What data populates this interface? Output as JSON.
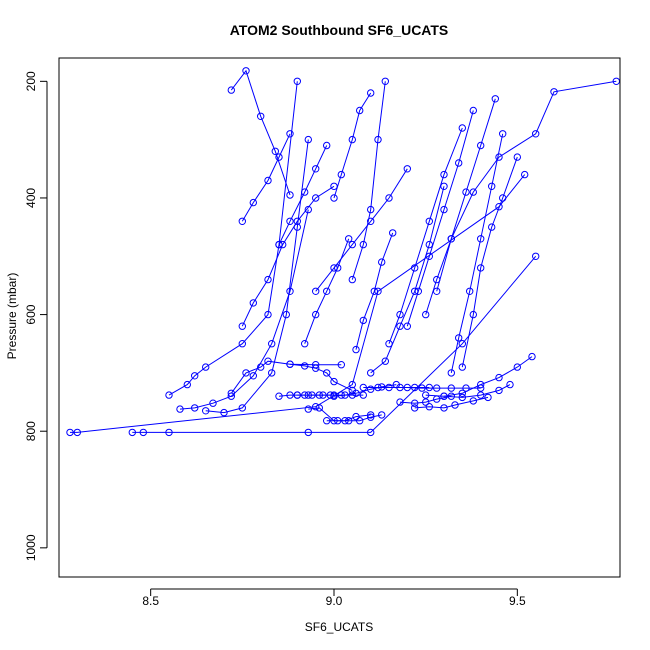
{
  "chart_data": {
    "type": "scatter",
    "title": "ATOM2 Southbound SF6_UCATS",
    "xlabel": "SF6_UCATS",
    "ylabel": "Pressure (mbar)",
    "xlim": [
      8.25,
      9.78
    ],
    "ylim": [
      1050,
      160
    ],
    "y_inverted": true,
    "x_ticks": [
      8.5,
      9.0,
      9.5
    ],
    "x_tick_labels": [
      "8.5",
      "9.0",
      "9.5"
    ],
    "y_ticks": [
      200,
      400,
      600,
      800,
      1000
    ],
    "y_tick_labels": [
      "200",
      "400",
      "600",
      "800",
      "1000"
    ],
    "grid": false,
    "legend": "none",
    "series_style": "points connected by lines (open circles)",
    "color": "#0000ff",
    "series": [
      {
        "x": [
          8.28,
          8.3,
          8.95,
          9.05,
          9.12,
          9.45,
          9.52
        ],
        "y": [
          802,
          802,
          758,
          720,
          560,
          415,
          360
        ]
      },
      {
        "x": [
          8.45,
          8.48,
          8.55,
          8.93,
          9.1,
          9.35,
          9.55
        ],
        "y": [
          802,
          802,
          802,
          802,
          802,
          650,
          500
        ]
      },
      {
        "x": [
          8.55,
          8.6,
          8.62,
          8.65,
          8.75,
          8.82,
          8.85,
          8.9
        ],
        "y": [
          738,
          720,
          705,
          690,
          650,
          600,
          480,
          200
        ]
      },
      {
        "x": [
          8.58,
          8.62,
          8.67,
          8.72,
          8.78,
          8.83,
          8.88,
          8.93
        ],
        "y": [
          762,
          760,
          752,
          740,
          705,
          650,
          560,
          420
        ]
      },
      {
        "x": [
          8.65,
          8.7,
          8.75,
          8.83,
          8.87,
          8.9,
          8.93
        ],
        "y": [
          765,
          768,
          760,
          700,
          600,
          450,
          300
        ]
      },
      {
        "x": [
          8.72,
          8.76,
          8.8,
          8.82,
          8.88,
          8.95,
          9.02
        ],
        "y": [
          735,
          700,
          690,
          680,
          685,
          686,
          686
        ]
      },
      {
        "x": [
          8.75,
          8.78,
          8.82,
          8.86,
          8.9,
          8.95,
          9.0
        ],
        "y": [
          620,
          580,
          540,
          480,
          440,
          400,
          380
        ]
      },
      {
        "x": [
          8.72,
          8.76,
          8.8,
          8.84,
          8.88
        ],
        "y": [
          215,
          182,
          260,
          320,
          395
        ]
      },
      {
        "x": [
          8.75,
          8.78,
          8.82,
          8.85,
          8.88
        ],
        "y": [
          440,
          408,
          370,
          330,
          290
        ]
      },
      {
        "x": [
          8.85,
          8.88,
          8.9,
          8.92,
          8.94,
          8.97,
          9.0
        ],
        "y": [
          740,
          738,
          738,
          738,
          738,
          738,
          738
        ]
      },
      {
        "x": [
          8.9,
          8.93,
          8.96,
          8.99,
          9.02,
          9.05,
          9.08
        ],
        "y": [
          738,
          738,
          738,
          738,
          738,
          738,
          738
        ]
      },
      {
        "x": [
          8.88,
          8.92,
          8.95,
          8.98,
          9.0,
          9.05
        ],
        "y": [
          685,
          688,
          692,
          700,
          715,
          730
        ]
      },
      {
        "x": [
          8.93,
          8.96,
          9.0,
          9.03,
          9.06,
          9.1
        ],
        "y": [
          762,
          760,
          782,
          782,
          775,
          772
        ]
      },
      {
        "x": [
          8.98,
          9.01,
          9.04,
          9.07,
          9.1,
          9.13
        ],
        "y": [
          782,
          782,
          782,
          782,
          776,
          772
        ]
      },
      {
        "x": [
          9.0,
          9.03,
          9.06,
          9.1,
          9.13,
          9.17
        ],
        "y": [
          740,
          738,
          735,
          728,
          724,
          720
        ]
      },
      {
        "x": [
          9.08,
          9.12,
          9.15,
          9.18,
          9.22,
          9.26
        ],
        "y": [
          725,
          725,
          725,
          725,
          725,
          725
        ]
      },
      {
        "x": [
          9.2,
          9.24,
          9.28,
          9.32,
          9.36,
          9.4
        ],
        "y": [
          725,
          726,
          726,
          726,
          726,
          726
        ]
      },
      {
        "x": [
          9.25,
          9.3,
          9.35,
          9.4,
          9.45,
          9.48
        ],
        "y": [
          738,
          740,
          742,
          738,
          730,
          720
        ]
      },
      {
        "x": [
          9.22,
          9.26,
          9.3,
          9.33,
          9.38,
          9.42
        ],
        "y": [
          760,
          758,
          760,
          755,
          748,
          742
        ]
      },
      {
        "x": [
          9.18,
          9.22,
          9.25,
          9.28,
          9.32
        ],
        "y": [
          750,
          752,
          750,
          745,
          740
        ]
      },
      {
        "x": [
          9.3,
          9.35,
          9.4,
          9.45,
          9.5,
          9.54
        ],
        "y": [
          740,
          735,
          720,
          708,
          690,
          672
        ]
      },
      {
        "x": [
          9.1,
          9.14,
          9.18,
          9.22,
          9.26,
          9.3
        ],
        "y": [
          700,
          680,
          620,
          560,
          480,
          380
        ]
      },
      {
        "x": [
          9.15,
          9.18,
          9.22,
          9.26,
          9.3,
          9.35
        ],
        "y": [
          650,
          600,
          520,
          440,
          360,
          280
        ]
      },
      {
        "x": [
          9.2,
          9.23,
          9.26,
          9.3,
          9.34,
          9.38
        ],
        "y": [
          620,
          560,
          500,
          420,
          340,
          250
        ]
      },
      {
        "x": [
          9.25,
          9.28,
          9.32,
          9.36,
          9.4,
          9.44
        ],
        "y": [
          600,
          540,
          470,
          390,
          310,
          230
        ]
      },
      {
        "x": [
          9.32,
          9.34,
          9.37,
          9.4,
          9.43,
          9.46
        ],
        "y": [
          700,
          640,
          560,
          470,
          380,
          290
        ]
      },
      {
        "x": [
          9.35,
          9.38,
          9.4,
          9.43,
          9.46,
          9.5
        ],
        "y": [
          690,
          600,
          520,
          450,
          400,
          330
        ]
      },
      {
        "x": [
          9.05,
          9.08,
          9.1,
          9.12,
          9.14
        ],
        "y": [
          540,
          480,
          420,
          300,
          200
        ]
      },
      {
        "x": [
          9.0,
          9.02,
          9.05,
          9.07,
          9.1
        ],
        "y": [
          400,
          360,
          300,
          250,
          220
        ]
      },
      {
        "x": [
          9.28,
          9.32,
          9.38,
          9.45,
          9.55,
          9.6,
          9.77
        ],
        "y": [
          560,
          470,
          390,
          330,
          290,
          218,
          200
        ]
      },
      {
        "x": [
          8.95,
          9.0,
          9.05,
          9.1,
          9.15,
          9.2
        ],
        "y": [
          560,
          520,
          480,
          440,
          400,
          350
        ]
      },
      {
        "x": [
          8.85,
          8.88,
          8.92,
          8.95,
          8.98
        ],
        "y": [
          480,
          440,
          390,
          350,
          310
        ]
      },
      {
        "x": [
          8.92,
          8.95,
          8.98,
          9.01,
          9.04
        ],
        "y": [
          650,
          600,
          560,
          520,
          470
        ]
      },
      {
        "x": [
          9.06,
          9.08,
          9.11,
          9.13,
          9.16
        ],
        "y": [
          660,
          610,
          560,
          510,
          460
        ]
      }
    ]
  }
}
